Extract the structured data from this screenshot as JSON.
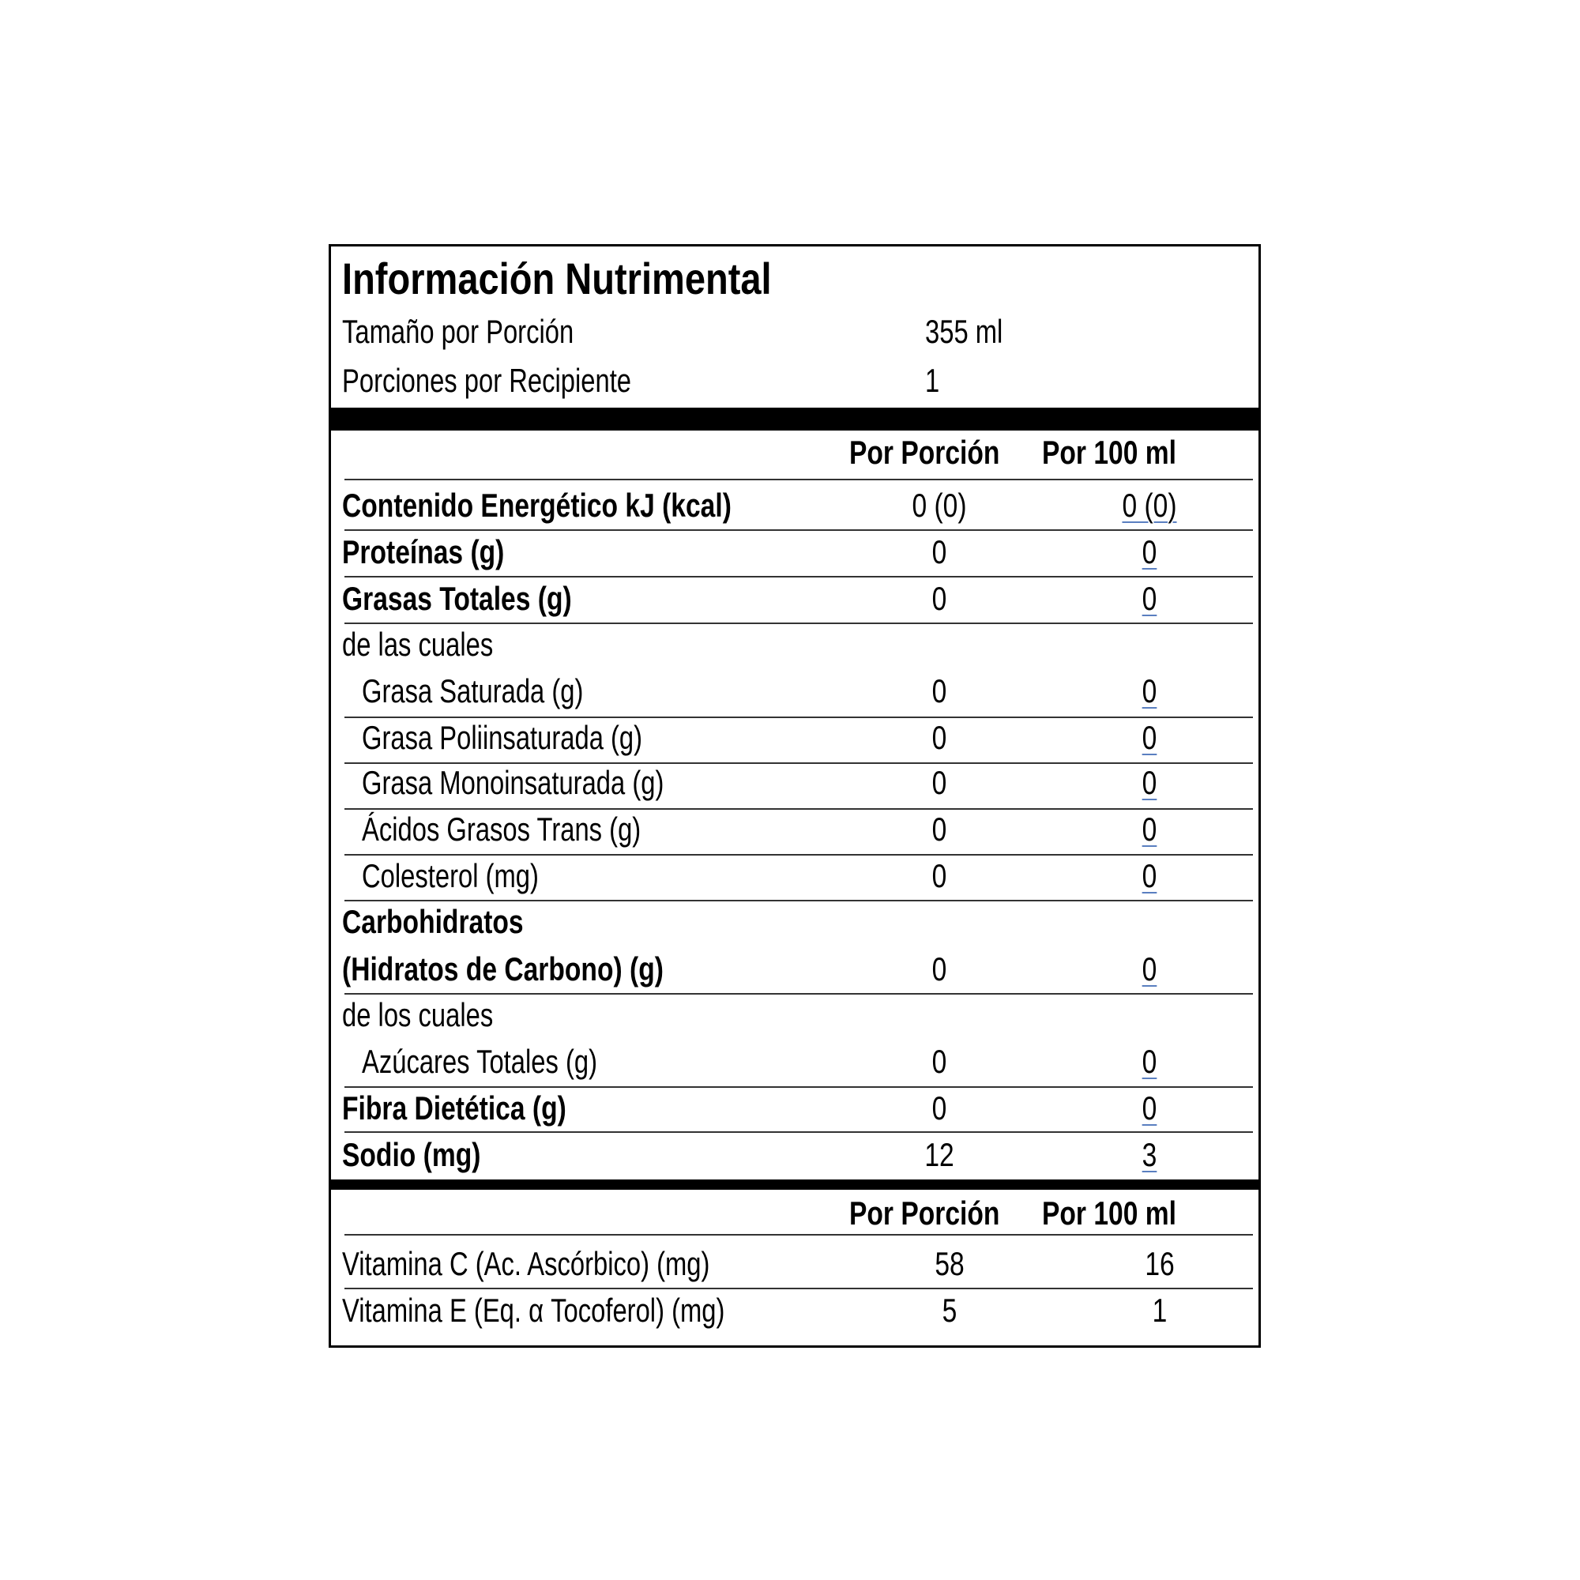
{
  "title": "Información Nutrimental",
  "serving": {
    "size_label": "Tamaño por Porción",
    "size_value": "355 ml",
    "per_container_label": "Porciones por Recipiente",
    "per_container_value": "1"
  },
  "columns": {
    "per_serving": "Por Porción",
    "per_100": "Por 100 ml"
  },
  "nutrients": [
    {
      "label": "Contenido Energético kJ (kcal)",
      "serving": "0 (0)",
      "per100": "0 (0)",
      "bold": true
    },
    {
      "label": "Proteínas (g)",
      "serving": "0",
      "per100": "0",
      "bold": true
    },
    {
      "label": "Grasas Totales (g)",
      "serving": "0",
      "per100": "0",
      "bold": true
    },
    {
      "label": "de las cuales",
      "serving": "",
      "per100": "",
      "bold": false
    },
    {
      "label": "Grasa Saturada (g)",
      "serving": "0",
      "per100": "0",
      "bold": false,
      "indent": true
    },
    {
      "label": "Grasa Poliinsaturada (g)",
      "serving": "0",
      "per100": "0",
      "bold": false,
      "indent": true
    },
    {
      "label": "Grasa Monoinsaturada (g)",
      "serving": "0",
      "per100": "0",
      "bold": false,
      "indent": true
    },
    {
      "label": "Ácidos Grasos Trans (g)",
      "serving": "0",
      "per100": "0",
      "bold": false,
      "indent": true
    },
    {
      "label": "Colesterol (mg)",
      "serving": "0",
      "per100": "0",
      "bold": false,
      "indent": true
    },
    {
      "label": "Carbohidratos",
      "serving": "",
      "per100": "",
      "bold": true
    },
    {
      "label": "(Hidratos de Carbono) (g)",
      "serving": "0",
      "per100": "0",
      "bold": true
    },
    {
      "label": "de los cuales",
      "serving": "",
      "per100": "",
      "bold": false
    },
    {
      "label": "Azúcares Totales (g)",
      "serving": "0",
      "per100": "0",
      "bold": false,
      "indent": true
    },
    {
      "label": "Fibra Dietética (g)",
      "serving": "0",
      "per100": "0",
      "bold": true
    },
    {
      "label": "Sodio (mg)",
      "serving": "12",
      "per100": "3",
      "bold": true
    }
  ],
  "vitamins": [
    {
      "label": "Vitamina C (Ac. Ascórbico) (mg)",
      "serving": "58",
      "per100": "16"
    },
    {
      "label": "Vitamina E (Eq. α Tocoferol) (mg)",
      "serving": "5",
      "per100": "1"
    }
  ]
}
